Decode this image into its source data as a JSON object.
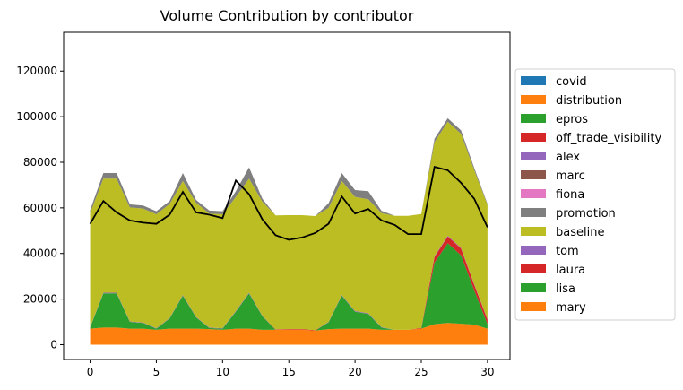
{
  "chart_data": {
    "type": "area",
    "title": "Volume Contribution by contributor",
    "xlabel": "",
    "ylabel": "",
    "x": [
      0,
      1,
      2,
      3,
      4,
      5,
      6,
      7,
      8,
      9,
      10,
      11,
      12,
      13,
      14,
      15,
      16,
      17,
      18,
      19,
      20,
      21,
      22,
      23,
      24,
      25,
      26,
      27,
      28,
      29,
      30
    ],
    "xlim": [
      -2,
      31.7
    ],
    "ylim": [
      -6500,
      137000
    ],
    "xticks": [
      0,
      5,
      10,
      15,
      20,
      25,
      30
    ],
    "yticks": [
      0,
      20000,
      40000,
      60000,
      80000,
      100000,
      120000
    ],
    "grid": false,
    "legend": "right",
    "stacked": true,
    "series": [
      {
        "name": "mary",
        "color": "#ff7f0e",
        "values": [
          7000,
          7500,
          7500,
          7000,
          7000,
          6500,
          7000,
          7000,
          7000,
          6800,
          6500,
          7000,
          7000,
          6500,
          6500,
          6500,
          6500,
          6200,
          6800,
          7000,
          7000,
          7000,
          6500,
          6500,
          6500,
          7000,
          9000,
          9500,
          9200,
          8800,
          7000
        ]
      },
      {
        "name": "lisa",
        "color": "#2ca02c",
        "values": [
          500,
          15000,
          15000,
          3000,
          2500,
          500,
          4500,
          14500,
          5000,
          500,
          500,
          7500,
          15500,
          6000,
          0,
          0,
          0,
          0,
          3000,
          14500,
          7500,
          6500,
          1000,
          0,
          0,
          0,
          27000,
          35000,
          30000,
          15000,
          2000
        ]
      },
      {
        "name": "laura",
        "color": "#d62728",
        "values": [
          0,
          0,
          0,
          0,
          0,
          0,
          0,
          0,
          0,
          0,
          0,
          0,
          0,
          0,
          200,
          300,
          300,
          200,
          0,
          0,
          0,
          0,
          0,
          0,
          0,
          300,
          2500,
          3000,
          3000,
          2500,
          2000
        ]
      },
      {
        "name": "tom",
        "color": "#9467bd",
        "values": [
          200,
          300,
          300,
          200,
          200,
          200,
          200,
          300,
          200,
          200,
          200,
          300,
          300,
          200,
          0,
          0,
          0,
          0,
          200,
          300,
          300,
          300,
          200,
          0,
          0,
          0,
          300,
          300,
          300,
          200,
          200
        ]
      },
      {
        "name": "baseline",
        "color": "#bcbd22",
        "values": [
          50000,
          50000,
          50000,
          50000,
          50000,
          50000,
          50000,
          50000,
          50000,
          50000,
          50000,
          50000,
          50000,
          50000,
          50000,
          50000,
          50000,
          50000,
          50000,
          50000,
          50000,
          50000,
          50000,
          50000,
          50000,
          50000,
          50000,
          50000,
          50000,
          50000,
          50000
        ]
      },
      {
        "name": "promotion",
        "color": "#7f7f7f",
        "values": [
          1300,
          2500,
          2500,
          1300,
          1300,
          1300,
          1300,
          3500,
          1300,
          1300,
          1300,
          2500,
          5000,
          1300,
          0,
          0,
          0,
          0,
          2000,
          3500,
          3000,
          3500,
          1000,
          0,
          0,
          0,
          1500,
          1500,
          1500,
          1000,
          500
        ]
      },
      {
        "name": "fiona",
        "color": "#e377c2",
        "values": [
          0,
          0,
          0,
          0,
          0,
          0,
          0,
          0,
          0,
          0,
          0,
          0,
          0,
          0,
          0,
          0,
          0,
          0,
          0,
          0,
          0,
          0,
          0,
          0,
          0,
          0,
          0,
          0,
          0,
          0,
          0
        ]
      },
      {
        "name": "marc",
        "color": "#8c564b",
        "values": [
          0,
          0,
          0,
          0,
          0,
          0,
          0,
          0,
          0,
          0,
          0,
          0,
          0,
          0,
          0,
          0,
          0,
          0,
          0,
          0,
          0,
          0,
          0,
          0,
          0,
          0,
          0,
          0,
          0,
          0,
          0
        ]
      },
      {
        "name": "alex",
        "color": "#9467bd",
        "values": [
          0,
          0,
          0,
          0,
          0,
          0,
          0,
          0,
          0,
          0,
          0,
          0,
          0,
          0,
          0,
          0,
          0,
          0,
          0,
          0,
          0,
          0,
          0,
          0,
          0,
          0,
          0,
          0,
          0,
          0,
          0
        ]
      },
      {
        "name": "off_trade_visibility",
        "color": "#d62728",
        "values": [
          0,
          0,
          0,
          0,
          0,
          0,
          0,
          0,
          0,
          0,
          0,
          0,
          0,
          0,
          0,
          0,
          0,
          0,
          0,
          0,
          0,
          0,
          0,
          0,
          0,
          0,
          0,
          0,
          0,
          0,
          0
        ]
      },
      {
        "name": "epros",
        "color": "#2ca02c",
        "values": [
          0,
          0,
          0,
          0,
          0,
          0,
          0,
          0,
          0,
          0,
          0,
          0,
          0,
          0,
          0,
          0,
          0,
          0,
          0,
          0,
          0,
          0,
          0,
          0,
          0,
          0,
          0,
          0,
          0,
          0,
          0
        ]
      },
      {
        "name": "distribution",
        "color": "#ff7f0e",
        "values": [
          0,
          0,
          0,
          0,
          0,
          0,
          0,
          0,
          0,
          0,
          0,
          0,
          0,
          0,
          0,
          0,
          0,
          0,
          0,
          0,
          0,
          0,
          0,
          0,
          0,
          0,
          0,
          0,
          0,
          0,
          0
        ]
      },
      {
        "name": "covid",
        "color": "#1f77b4",
        "values": [
          0,
          0,
          0,
          0,
          0,
          0,
          0,
          0,
          0,
          0,
          0,
          0,
          0,
          0,
          0,
          0,
          0,
          0,
          0,
          0,
          0,
          0,
          0,
          0,
          0,
          0,
          0,
          0,
          0,
          0,
          0
        ]
      }
    ],
    "line": {
      "name": "",
      "color": "#000000",
      "values": [
        53000,
        63000,
        58000,
        54500,
        53500,
        53000,
        57000,
        67000,
        58000,
        57000,
        55500,
        72000,
        66000,
        55000,
        48000,
        46000,
        47000,
        49000,
        53000,
        65000,
        57500,
        59500,
        54500,
        52500,
        48500,
        48500,
        78000,
        76500,
        71000,
        64000,
        51500
      ]
    }
  }
}
